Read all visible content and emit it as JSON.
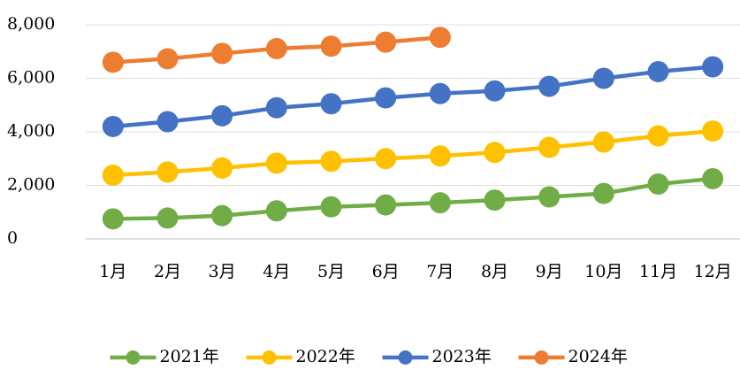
{
  "chart_data": {
    "type": "line",
    "categories": [
      "1月",
      "2月",
      "3月",
      "4月",
      "5月",
      "6月",
      "7月",
      "8月",
      "9月",
      "10月",
      "11月",
      "12月"
    ],
    "series": [
      {
        "name": "2021年",
        "color": "#70ad47",
        "values": [
          750,
          780,
          870,
          1050,
          1200,
          1270,
          1350,
          1450,
          1570,
          1700,
          2050,
          2250
        ]
      },
      {
        "name": "2022年",
        "color": "#ffc000",
        "values": [
          2380,
          2500,
          2650,
          2830,
          2900,
          3000,
          3100,
          3230,
          3420,
          3620,
          3850,
          4030
        ]
      },
      {
        "name": "2023年",
        "color": "#4472c4",
        "values": [
          4200,
          4380,
          4600,
          4900,
          5050,
          5270,
          5430,
          5530,
          5700,
          6000,
          6250,
          6430
        ]
      },
      {
        "name": "2024年",
        "color": "#ed7d31",
        "values": [
          6600,
          6730,
          6930,
          7110,
          7200,
          7350,
          7530,
          null,
          null,
          null,
          null,
          null
        ]
      }
    ],
    "ylim": [
      0,
      8000
    ],
    "yticks": [
      0,
      {
        "value": 2000,
        "label": "2,000"
      },
      {
        "value": 4000,
        "label": "4,000"
      },
      {
        "value": 6000,
        "label": "6,000"
      },
      {
        "value": 8000,
        "label": "8,000"
      }
    ],
    "grid": true,
    "legend": "bottom"
  }
}
